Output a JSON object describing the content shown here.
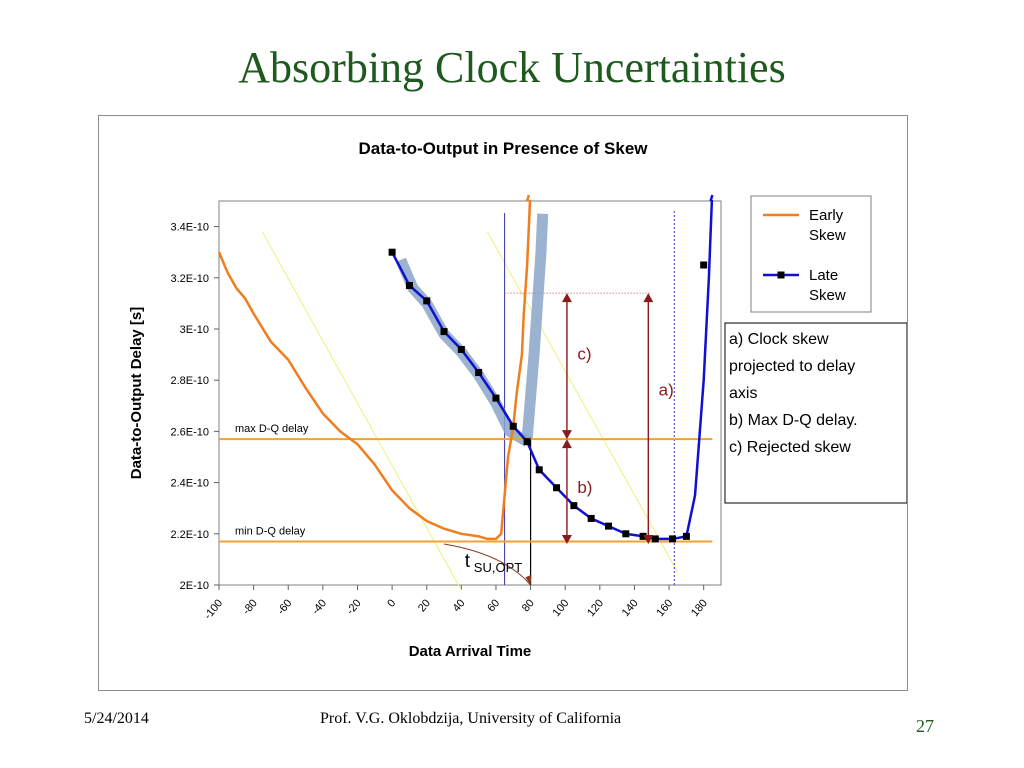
{
  "slide": {
    "title": "Absorbing Clock Uncertainties",
    "date": "5/24/2014",
    "author": "Prof. V.G. Oklobdzija, University of California",
    "page": "27"
  },
  "chart_data": {
    "type": "line",
    "title": "Data-to-Output in Presence of Skew",
    "xlabel": "Data Arrival Time",
    "ylabel": "Data-to-Output Delay [s]",
    "xlim": [
      -100,
      190
    ],
    "ylim": [
      2e-10,
      3.5e-10
    ],
    "x_ticks": [
      "-100",
      "-80",
      "-60",
      "-40",
      "-20",
      "0",
      "20",
      "40",
      "60",
      "80",
      "100",
      "120",
      "140",
      "160",
      "180"
    ],
    "y_ticks": [
      "2E-10",
      "2.2E-10",
      "2.4E-10",
      "2.6E-10",
      "2.8E-10",
      "3E-10",
      "3.2E-10",
      "3.4E-10"
    ],
    "legend_position": "right",
    "colors": {
      "early": "#f07d1e",
      "late": "#1010d0",
      "ref_lines": "#f5a030",
      "band": "#8aa4c8",
      "arrows": "#8b1a1a",
      "diag": "#f0f07a"
    },
    "series": [
      {
        "name": "Early Skew",
        "x": [
          -100,
          -95,
          -90,
          -85,
          -80,
          -70,
          -60,
          -50,
          -40,
          -30,
          -20,
          -10,
          0,
          10,
          20,
          30,
          40,
          50,
          55,
          60,
          63,
          65,
          67,
          70,
          72,
          75,
          76,
          78,
          80
        ],
        "y": [
          3.3e-10,
          3.22e-10,
          3.16e-10,
          3.12e-10,
          3.06e-10,
          2.95e-10,
          2.88e-10,
          2.77e-10,
          2.67e-10,
          2.6e-10,
          2.55e-10,
          2.47e-10,
          2.37e-10,
          2.3e-10,
          2.25e-10,
          2.22e-10,
          2.2e-10,
          2.19e-10,
          2.18e-10,
          2.18e-10,
          2.2e-10,
          2.35e-10,
          2.5e-10,
          2.62e-10,
          2.75e-10,
          2.9e-10,
          3.05e-10,
          3.25e-10,
          3.55e-10
        ]
      },
      {
        "name": "Late Skew",
        "x": [
          0,
          10,
          20,
          30,
          40,
          50,
          60,
          70,
          78,
          85,
          95,
          105,
          115,
          125,
          135,
          145,
          152,
          162,
          170,
          175,
          180,
          183,
          185
        ],
        "y": [
          3.3e-10,
          3.17e-10,
          3.11e-10,
          2.99e-10,
          2.92e-10,
          2.83e-10,
          2.73e-10,
          2.62e-10,
          2.56e-10,
          2.45e-10,
          2.38e-10,
          2.31e-10,
          2.26e-10,
          2.23e-10,
          2.2e-10,
          2.19e-10,
          2.18e-10,
          2.18e-10,
          2.19e-10,
          2.35e-10,
          2.8e-10,
          3.2e-10,
          3.55e-10
        ]
      }
    ],
    "reference_lines": [
      {
        "label": "max D-Q delay",
        "y": 2.57e-10
      },
      {
        "label": "min D-Q delay",
        "y": 2.17e-10
      }
    ],
    "annotations": {
      "a_label": "a)",
      "b_label": "b)",
      "c_label": "c)",
      "tsu_base": "t",
      "tsu_sub": "SU,OPT",
      "notes": [
        "a) Clock skew",
        "projected to delay",
        "axis",
        "b) Max D-Q delay.",
        "c) Rejected skew"
      ]
    }
  }
}
